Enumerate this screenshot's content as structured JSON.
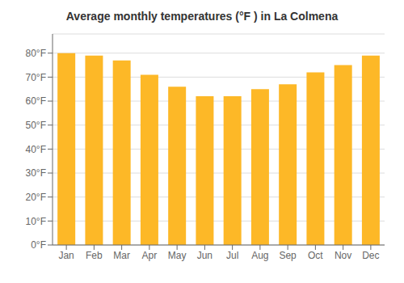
{
  "chart_data": {
    "type": "bar",
    "title": "Average monthly temperatures (°F ) in La Colmena",
    "categories": [
      "Jan",
      "Feb",
      "Mar",
      "Apr",
      "May",
      "Jun",
      "Jul",
      "Aug",
      "Sep",
      "Oct",
      "Nov",
      "Dec"
    ],
    "values": [
      80,
      79,
      77,
      71,
      66,
      62,
      62,
      65,
      67,
      72,
      75,
      79
    ],
    "color": "#FDB827",
    "ylim": [
      0,
      88
    ],
    "yticks": [
      {
        "value": 0,
        "label": "0°F"
      },
      {
        "value": 10,
        "label": "10°F"
      },
      {
        "value": 20,
        "label": "20°F"
      },
      {
        "value": 30,
        "label": "30°F"
      },
      {
        "value": 40,
        "label": "40°F"
      },
      {
        "value": 50,
        "label": "50°F"
      },
      {
        "value": 60,
        "label": "60°F"
      },
      {
        "value": 70,
        "label": "70°F"
      },
      {
        "value": 80,
        "label": "80°F"
      }
    ],
    "grid": true
  }
}
